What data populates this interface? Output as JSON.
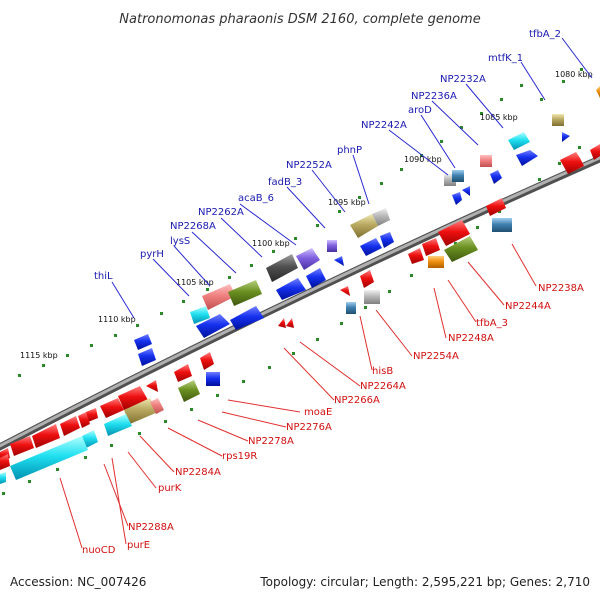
{
  "title": "Natronomonas pharaonis DSM 2160, complete genome",
  "footer": {
    "accession": "Accession: NC_007426",
    "summary": "Topology: circular; Length: 2,595,221 bp; Genes: 2,710"
  },
  "kbp_markers": [
    {
      "label": "1080 kbp"
    },
    {
      "label": "1085 kbp"
    },
    {
      "label": "1090 kbp"
    },
    {
      "label": "1095 kbp"
    },
    {
      "label": "1100 kbp"
    },
    {
      "label": "1105 kbp"
    },
    {
      "label": "1110 kbp"
    },
    {
      "label": "1115 kbp"
    }
  ],
  "top_labels": [
    "tfbA_2",
    "mtfK_1",
    "NP2232A",
    "NP2236A",
    "aroD",
    "NP2242A",
    "phnP",
    "NP2252A",
    "fadB_3",
    "acaB_6",
    "NP2262A",
    "NP2268A",
    "lysS",
    "pyrH",
    "thiL"
  ],
  "bottom_labels": [
    "NP2238A",
    "NP2244A",
    "tfbA_3",
    "NP2248A",
    "NP2254A",
    "hisB",
    "NP2264A",
    "NP2266A",
    "moaE",
    "NP2276A",
    "NP2278A",
    "rps19R",
    "NP2284A",
    "purK",
    "NP2288A",
    "purE",
    "nuoCD"
  ],
  "colors": {
    "backbone": "#808080",
    "forward_gene": "#e01010",
    "reverse_gene": "#1030e0",
    "label_top": "#1a1ab0",
    "label_bottom": "#d01010",
    "tick": "#2a8a2a"
  }
}
